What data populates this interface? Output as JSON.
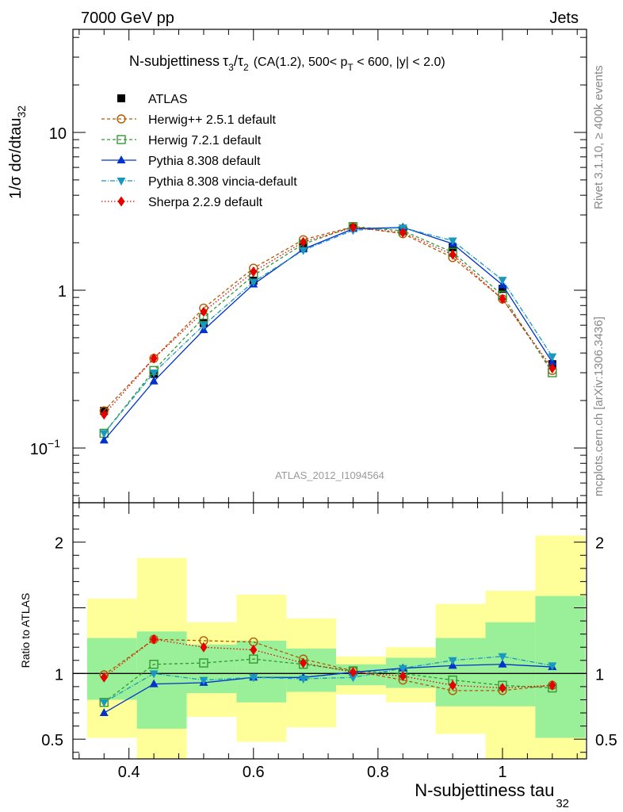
{
  "header": {
    "left": "7000 GeV pp",
    "right": "Jets"
  },
  "side_labels": {
    "rivet": "Rivet 3.1.10, ≥ 400k events",
    "mcplots": "mcplots.cern.ch [arXiv:1306.3436]"
  },
  "analysis_label": "ATLAS_2012_I1094564",
  "chart_data": {
    "type": "line",
    "title": {
      "main": "N-subjettiness",
      "tau_num": "τ",
      "tau_num_sub": "3",
      "slash": "/",
      "tau_den": "τ",
      "tau_den_sub": "2",
      "cuts_a": "(CA(1.2), 500< p",
      "cuts_sub": "T",
      "cuts_b": " < 600, |y| < 2.0)"
    },
    "ylabel": {
      "main": "1/σ dσ/dtau",
      "sub": "32"
    },
    "xlabel": {
      "main": "N-subjettiness tau",
      "sub": "32"
    },
    "ratio_ylabel": "Ratio to ATLAS",
    "xlim": [
      0.31,
      1.135
    ],
    "ylim": [
      0.045,
      45
    ],
    "ylog": true,
    "ratio_ylim": [
      0.35,
      2.3
    ],
    "x_ticks": [
      {
        "value": 0.4,
        "label": "0.4"
      },
      {
        "value": 0.6,
        "label": "0.6"
      },
      {
        "value": 0.8,
        "label": "0.8"
      },
      {
        "value": 1.0,
        "label": "1"
      }
    ],
    "y_ticks": [
      {
        "value": 0.1,
        "label": "10",
        "sup": "−1"
      },
      {
        "value": 1,
        "label": "1",
        "sup": ""
      },
      {
        "value": 10,
        "label": "10",
        "sup": ""
      }
    ],
    "ratio_ticks": [
      {
        "value": 0.5,
        "label": "0.5"
      },
      {
        "value": 1,
        "label": "1"
      },
      {
        "value": 2,
        "label": "2"
      }
    ],
    "bin_edges": [
      0.32,
      0.4,
      0.48,
      0.56,
      0.64,
      0.72,
      0.8,
      0.88,
      0.96,
      1.04,
      1.12
    ],
    "x": [
      0.36,
      0.44,
      0.52,
      0.6,
      0.68,
      0.76,
      0.84,
      0.92,
      1.0,
      1.08
    ],
    "data": {
      "name": "ATLAS",
      "color": "#000000",
      "values": [
        0.172,
        0.295,
        0.62,
        1.15,
        1.87,
        2.48,
        2.4,
        1.87,
        1.02,
        0.34
      ]
    },
    "band_inner": [
      [
        0.8,
        1.27
      ],
      [
        0.58,
        1.32
      ],
      [
        0.85,
        1.22
      ],
      [
        0.78,
        1.25
      ],
      [
        0.86,
        1.19
      ],
      [
        0.91,
        1.07
      ],
      [
        0.89,
        1.12
      ],
      [
        0.75,
        1.27
      ],
      [
        0.75,
        1.39
      ],
      [
        0.51,
        1.59
      ]
    ],
    "band_outer": [
      [
        0.51,
        1.57
      ],
      [
        0.3,
        1.88
      ],
      [
        0.67,
        1.39
      ],
      [
        0.48,
        1.6
      ],
      [
        0.59,
        1.42
      ],
      [
        0.84,
        1.13
      ],
      [
        0.78,
        1.2
      ],
      [
        0.54,
        1.53
      ],
      [
        0.3,
        1.63
      ],
      [
        0.3,
        2.05
      ]
    ],
    "band_colors": {
      "inner": "#99f099",
      "outer": "#ffff99"
    },
    "series": [
      {
        "name": "Herwig++ 2.5.1 default",
        "color": "#b35900",
        "marker": "circle-open",
        "dash": "4,3",
        "values": [
          0.172,
          0.37,
          0.77,
          1.38,
          2.09,
          2.52,
          2.28,
          1.61,
          0.88,
          0.31
        ],
        "ratio": [
          0.99,
          1.26,
          1.25,
          1.24,
          1.11,
          1.02,
          0.95,
          0.87,
          0.87,
          0.91
        ]
      },
      {
        "name": "Herwig 7.2.1 default",
        "color": "#339933",
        "marker": "square-open",
        "dash": "4,3",
        "values": [
          0.124,
          0.31,
          0.67,
          1.24,
          1.96,
          2.53,
          2.38,
          1.74,
          0.93,
          0.3
        ],
        "ratio": [
          0.78,
          1.07,
          1.08,
          1.11,
          1.07,
          1.02,
          1.0,
          0.95,
          0.91,
          0.89
        ]
      },
      {
        "name": "Pythia 8.308 default",
        "color": "#0033cc",
        "marker": "triangle-up",
        "dash": "",
        "values": [
          0.112,
          0.265,
          0.56,
          1.09,
          1.82,
          2.45,
          2.5,
          1.97,
          1.08,
          0.35
        ],
        "ratio": [
          0.7,
          0.92,
          0.93,
          0.97,
          0.97,
          1.01,
          1.04,
          1.06,
          1.07,
          1.05
        ]
      },
      {
        "name": "Pythia 8.308 vincia-default",
        "color": "#1a99bf",
        "marker": "triangle-down",
        "dash": "6,2,1,2",
        "values": [
          0.124,
          0.3,
          0.6,
          1.13,
          1.79,
          2.4,
          2.49,
          2.06,
          1.16,
          0.38
        ],
        "ratio": [
          0.78,
          1.0,
          0.95,
          0.97,
          0.96,
          0.97,
          1.04,
          1.1,
          1.13,
          1.06
        ]
      },
      {
        "name": "Sherpa 2.2.9 default",
        "color": "#e60000",
        "marker": "diamond",
        "dash": "1.5,2.5",
        "values": [
          0.163,
          0.37,
          0.73,
          1.31,
          2.02,
          2.5,
          2.32,
          1.68,
          0.88,
          0.32
        ],
        "ratio": [
          0.97,
          1.26,
          1.2,
          1.18,
          1.08,
          1.01,
          0.98,
          0.91,
          0.89,
          0.91
        ]
      }
    ]
  }
}
